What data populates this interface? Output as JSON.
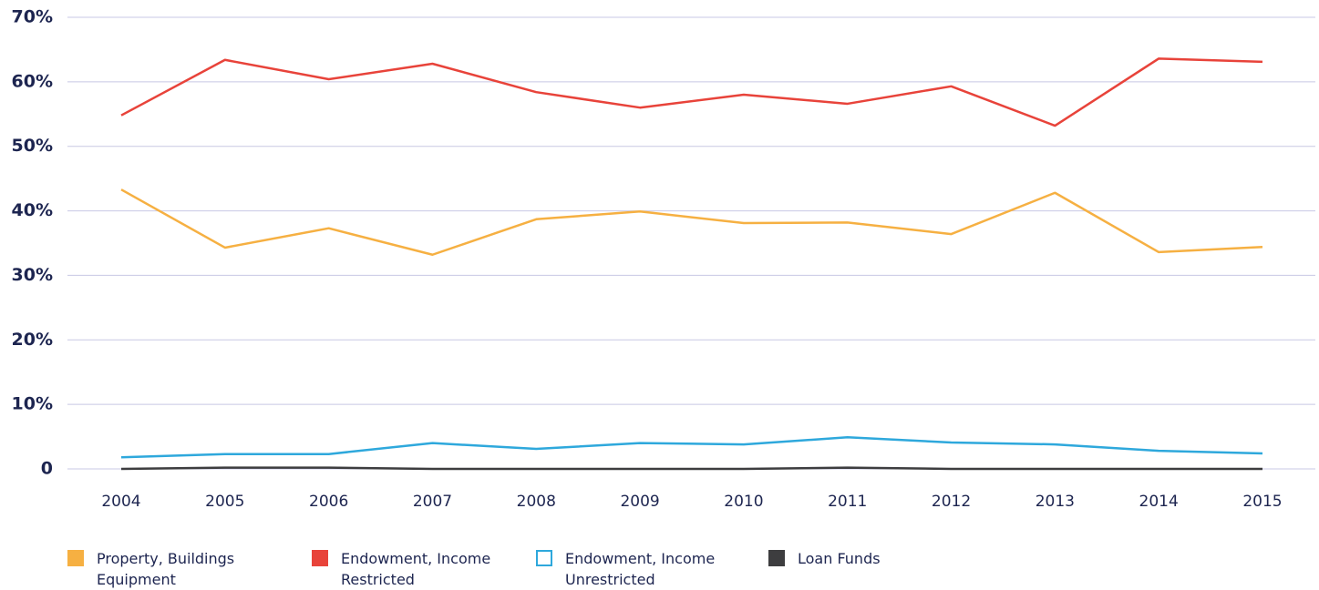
{
  "chart_data": {
    "type": "line",
    "categories": [
      "2004",
      "2005",
      "2006",
      "2007",
      "2008",
      "2009",
      "2010",
      "2011",
      "2012",
      "2013",
      "2014",
      "2015"
    ],
    "series": [
      {
        "name": "Property, Buildings Equipment",
        "color": "#f6b042",
        "values": [
          43.3,
          34.3,
          37.3,
          33.2,
          38.7,
          39.9,
          38.1,
          38.2,
          36.4,
          42.8,
          33.6,
          34.4
        ]
      },
      {
        "name": "Endowment, Income Restricted",
        "color": "#e8433a",
        "values": [
          54.8,
          63.4,
          60.4,
          62.8,
          58.4,
          56.0,
          58.0,
          56.6,
          59.3,
          53.2,
          63.6,
          63.1
        ]
      },
      {
        "name": "Endowment, Income Unrestricted",
        "color": "#2ea8dc",
        "legend_marker": "hollow",
        "values": [
          1.8,
          2.3,
          2.3,
          4.0,
          3.1,
          4.0,
          3.8,
          4.9,
          4.1,
          3.8,
          2.8,
          2.4
        ]
      },
      {
        "name": "Loan Funds",
        "color": "#3d3d3f",
        "values": [
          0,
          0.2,
          0.2,
          0,
          0,
          0,
          0,
          0.2,
          0,
          0,
          0,
          0
        ]
      }
    ],
    "ylim": [
      0,
      70
    ],
    "yticks": [
      0,
      {
        "value": 10,
        "label": "10%"
      },
      {
        "value": 20,
        "label": "20%"
      },
      {
        "value": 30,
        "label": "30%"
      },
      {
        "value": 40,
        "label": "40%"
      },
      {
        "value": 50,
        "label": "50%"
      },
      {
        "value": 60,
        "label": "60%"
      },
      {
        "value": 70,
        "label": "70%"
      }
    ],
    "grid": true
  }
}
